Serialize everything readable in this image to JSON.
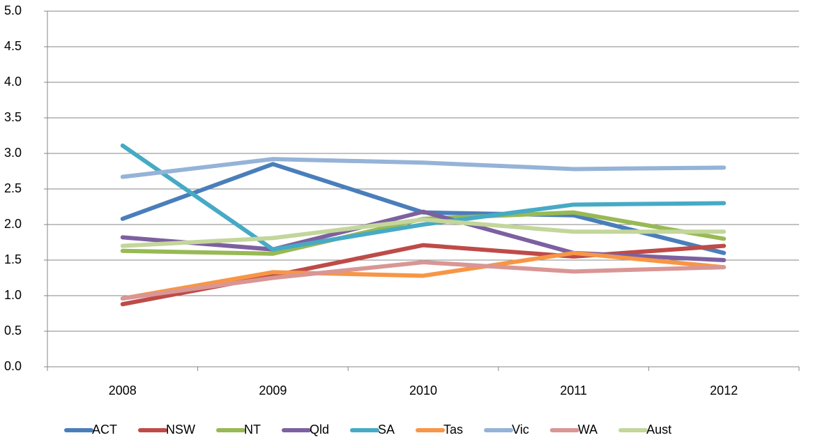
{
  "chart_data": {
    "type": "line",
    "categories": [
      "2008",
      "2009",
      "2010",
      "2011",
      "2012"
    ],
    "series": [
      {
        "name": "ACT",
        "color": "#4a7ebb",
        "values": [
          2.08,
          2.85,
          2.17,
          2.13,
          1.6
        ]
      },
      {
        "name": "NSW",
        "color": "#be4b48",
        "values": [
          0.88,
          1.28,
          1.71,
          1.55,
          1.7
        ]
      },
      {
        "name": "NT",
        "color": "#98b954",
        "values": [
          1.63,
          1.59,
          2.08,
          2.17,
          1.8
        ]
      },
      {
        "name": "Qld",
        "color": "#7d60a0",
        "values": [
          1.82,
          1.65,
          2.18,
          1.6,
          1.5
        ]
      },
      {
        "name": "SA",
        "color": "#46aac5",
        "values": [
          3.11,
          1.65,
          2.0,
          2.28,
          2.3
        ]
      },
      {
        "name": "Tas",
        "color": "#f79646",
        "values": [
          0.96,
          1.33,
          1.28,
          1.6,
          1.4
        ]
      },
      {
        "name": "Vic",
        "color": "#95b3d7",
        "values": [
          2.67,
          2.92,
          2.87,
          2.78,
          2.8
        ]
      },
      {
        "name": "WA",
        "color": "#d99694",
        "values": [
          0.96,
          1.25,
          1.47,
          1.34,
          1.4
        ]
      },
      {
        "name": "Aust",
        "color": "#c3d69b",
        "values": [
          1.7,
          1.81,
          2.07,
          1.9,
          1.9
        ]
      }
    ],
    "ylim": [
      0,
      5
    ],
    "yticks": [
      {
        "value": 0,
        "label": "0.0"
      },
      0.5,
      {
        "value": 1,
        "label": "1.0"
      },
      1.5,
      {
        "value": 2,
        "label": "2.0"
      },
      2.5,
      {
        "value": 3,
        "label": "3.0"
      },
      3.5,
      {
        "value": 4,
        "label": "4.0"
      },
      4.5,
      {
        "value": 5,
        "label": "5.0"
      }
    ],
    "grid": true,
    "legend": "bottom"
  }
}
